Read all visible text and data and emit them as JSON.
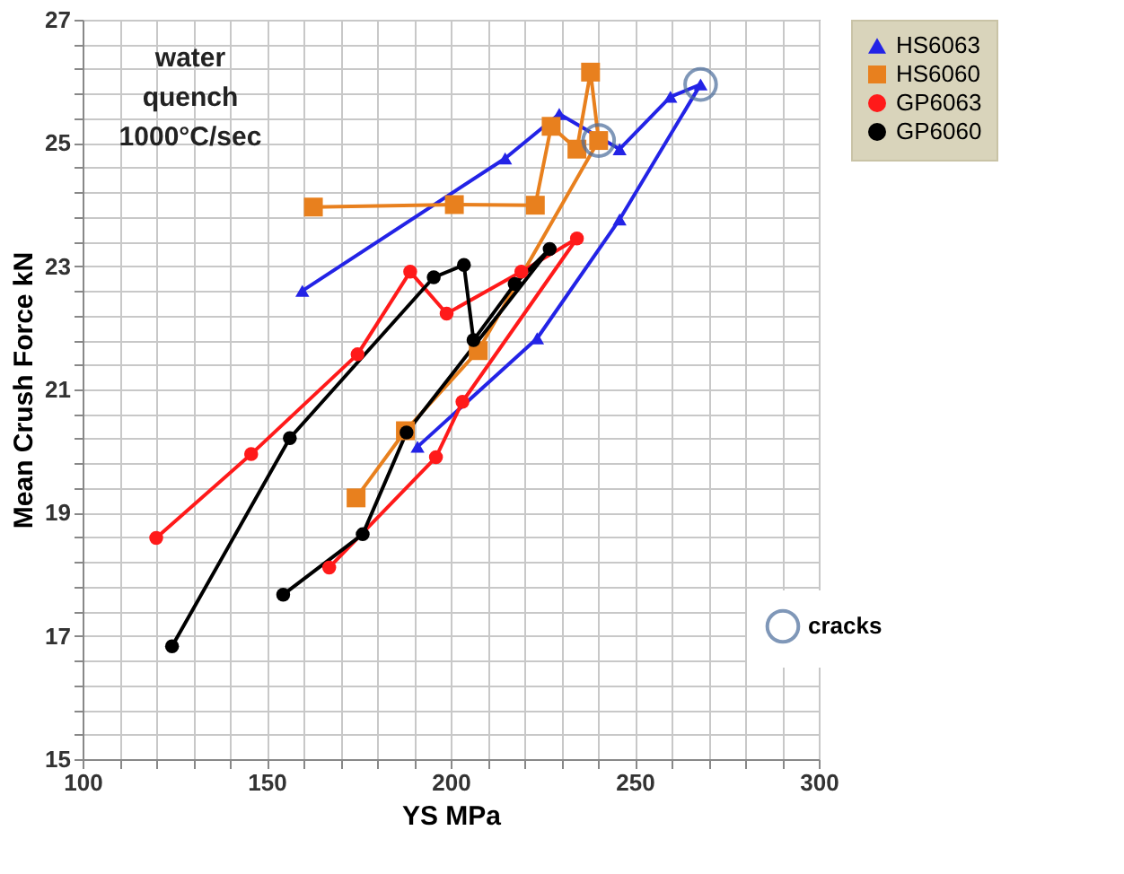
{
  "chart_data": {
    "type": "line",
    "xlabel": "YS MPa",
    "ylabel": "Mean Crush Force kN",
    "annotations": [
      "water quench 1000°C/sec"
    ],
    "xlim": [
      100,
      300
    ],
    "xticks": [
      100,
      {
        "value": 110,
        "label": null
      },
      {
        "value": 120,
        "label": null
      },
      {
        "value": 130,
        "label": null
      },
      {
        "value": 140,
        "label": null
      },
      150,
      {
        "value": 160,
        "label": null
      },
      {
        "value": 170,
        "label": null
      },
      {
        "value": 180,
        "label": null
      },
      {
        "value": 190,
        "label": null
      },
      200,
      {
        "value": 210,
        "label": null
      },
      {
        "value": 220,
        "label": null
      },
      {
        "value": 230,
        "label": null
      },
      {
        "value": 240,
        "label": null
      },
      250,
      {
        "value": 260,
        "label": null
      },
      {
        "value": 270,
        "label": null
      },
      {
        "value": 280,
        "label": null
      },
      {
        "value": 290,
        "label": null
      },
      300
    ],
    "ylim": [
      15,
      27
    ],
    "yticks": [
      15,
      {
        "value": 15.4,
        "label": null
      },
      {
        "value": 15.8,
        "label": null
      },
      {
        "value": 16.2,
        "label": null
      },
      {
        "value": 16.6,
        "label": null
      },
      17,
      {
        "value": 17.4,
        "label": null
      },
      {
        "value": 17.8,
        "label": null
      },
      {
        "value": 18.2,
        "label": null
      },
      {
        "value": 18.6,
        "label": null
      },
      19,
      {
        "value": 19.4,
        "label": null
      },
      {
        "value": 19.8,
        "label": null
      },
      {
        "value": 20.2,
        "label": null
      },
      {
        "value": 20.6,
        "label": null
      },
      21,
      {
        "value": 21.4,
        "label": null
      },
      {
        "value": 21.8,
        "label": null
      },
      {
        "value": 22.2,
        "label": null
      },
      {
        "value": 22.6,
        "label": null
      },
      23,
      {
        "value": 23.4,
        "label": null
      },
      {
        "value": 23.8,
        "label": null
      },
      {
        "value": 24.2,
        "label": null
      },
      {
        "value": 24.6,
        "label": null
      },
      25,
      {
        "value": 25.4,
        "label": null
      },
      {
        "value": 25.8,
        "label": null
      },
      {
        "value": 26.2,
        "label": null
      },
      {
        "value": 26.6,
        "label": null
      },
      27
    ],
    "grid": true,
    "legend": "right",
    "series": [
      {
        "name": "HS6063",
        "type": "line",
        "marker": "triangle",
        "color": "#2323e6",
        "x": [
          159.7,
          214.8,
          229.5,
          245.9,
          259.7,
          267.9,
          245.9,
          223.5,
          191
        ],
        "values": [
          22.6,
          24.75,
          25.47,
          24.9,
          25.75,
          25.95,
          23.76,
          21.83,
          20.07
        ]
      },
      {
        "name": "HS6060",
        "type": "line",
        "marker": "square",
        "color": "#e8801e",
        "x": [
          162.7,
          201,
          223,
          227.3,
          234.3,
          238,
          240.2,
          207.5,
          187.7,
          174.3
        ],
        "values": [
          23.96,
          24.0,
          23.99,
          25.27,
          24.9,
          26.15,
          25.04,
          21.63,
          20.33,
          19.24
        ]
      },
      {
        "name": "GP6063",
        "type": "line",
        "marker": "circle",
        "color": "#ff1a1a",
        "x": [
          120,
          145.8,
          174.7,
          189,
          198.9,
          219.2,
          234.3,
          203.2,
          196,
          167
        ],
        "values": [
          18.59,
          19.95,
          21.57,
          22.91,
          22.23,
          22.91,
          23.45,
          20.8,
          19.9,
          18.11
        ]
      },
      {
        "name": "GP6060",
        "type": "line",
        "marker": "circle",
        "color": "#000000",
        "x": [
          124.3,
          156.3,
          195.4,
          203.6,
          206.2,
          217.4,
          226.9,
          188,
          176.1,
          154.5
        ],
        "values": [
          16.83,
          20.21,
          22.82,
          23.02,
          21.8,
          22.71,
          23.28,
          20.3,
          18.65,
          17.67
        ]
      },
      {
        "name": "cracks",
        "type": "scatter",
        "marker": "circle",
        "color": "#4a6c9b",
        "x": [
          240.2,
          267.9
        ],
        "values": [
          25.04,
          25.95
        ]
      }
    ]
  }
}
